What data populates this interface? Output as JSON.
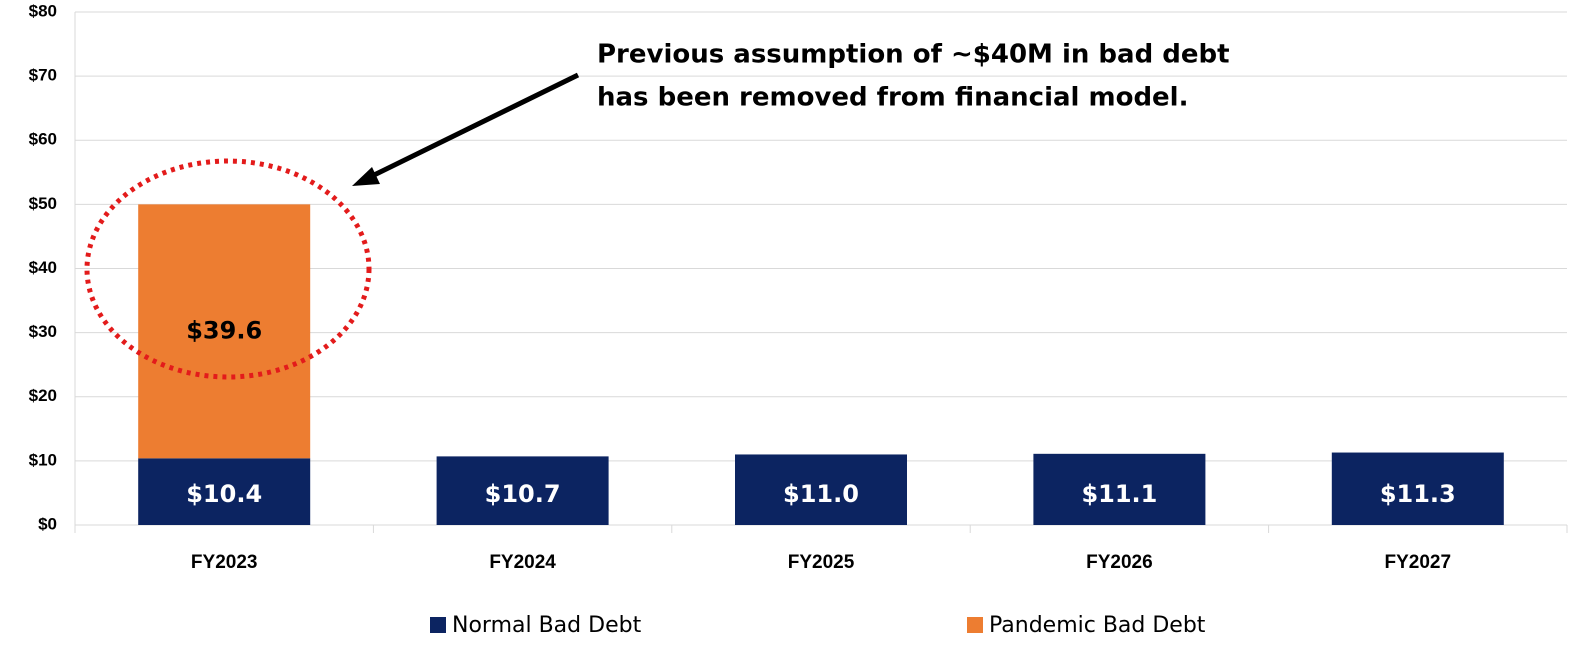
{
  "chart_data": {
    "type": "stacked_bar",
    "categories": [
      "FY2023",
      "FY2024",
      "FY2025",
      "FY2026",
      "FY2027"
    ],
    "series": [
      {
        "name": "Normal Bad Debt",
        "color": "#0c2461",
        "values": [
          10.4,
          10.7,
          11.0,
          11.1,
          11.3
        ],
        "value_labels": [
          "$10.4",
          "$10.7",
          "$11.0",
          "$11.1",
          "$11.3"
        ]
      },
      {
        "name": "Pandemic Bad Debt",
        "color": "#ed7d31",
        "values": [
          39.6,
          0,
          0,
          0,
          0
        ],
        "value_labels": [
          "$39.6",
          null,
          null,
          null,
          null
        ]
      }
    ],
    "ylim": [
      0,
      80
    ],
    "yticks": [
      {
        "value": 0,
        "label": "$0"
      },
      {
        "value": 10,
        "label": "$10"
      },
      {
        "value": 20,
        "label": "$20"
      },
      {
        "value": 30,
        "label": "$30"
      },
      {
        "value": 40,
        "label": "$40"
      },
      {
        "value": 50,
        "label": "$50"
      },
      {
        "value": 60,
        "label": "$60"
      },
      {
        "value": 70,
        "label": "$70"
      },
      {
        "value": 80,
        "label": "$80"
      }
    ],
    "grid": true,
    "annotation": [
      "Previous assumption of ~$40M in bad debt",
      "has been removed from financial model."
    ]
  }
}
